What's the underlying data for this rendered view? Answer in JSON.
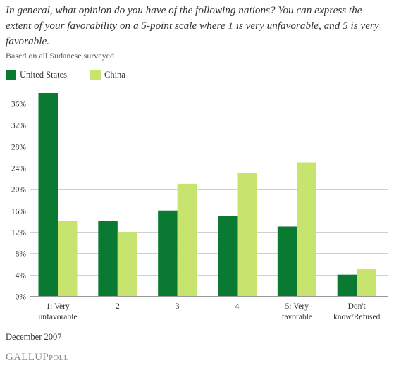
{
  "colors": {
    "united_states": "#0a7a33",
    "china": "#c6e46e",
    "grid": "#d0d0d0",
    "axis_text": "#333333"
  },
  "logo": {
    "main": "GALLUP",
    "sub": "POLL"
  },
  "footer": {
    "date": "December 2007"
  },
  "chart_data": {
    "type": "bar",
    "title": "In general, what opinion do you have of the following nations? You can express the extent of your favorability on a 5-point scale where 1 is very unfavorable, and 5 is very favorable.",
    "subtitle": "Based on all Sudanese surveyed",
    "categories": [
      [
        "1: Very",
        "unfavorable"
      ],
      [
        "2"
      ],
      [
        "3"
      ],
      [
        "4"
      ],
      [
        "5: Very",
        "favorable"
      ],
      [
        "Don't",
        "know/Refused"
      ]
    ],
    "series": [
      {
        "name": "United States",
        "values": [
          38,
          14,
          16,
          15,
          13,
          4
        ]
      },
      {
        "name": "China",
        "values": [
          14,
          12,
          21,
          23,
          25,
          5
        ]
      }
    ],
    "ylim": [
      0,
      38
    ],
    "yticks": [
      0,
      4,
      8,
      12,
      16,
      20,
      24,
      28,
      32,
      36
    ],
    "ytick_suffix": "%",
    "grid": true,
    "legend": "top-left"
  }
}
